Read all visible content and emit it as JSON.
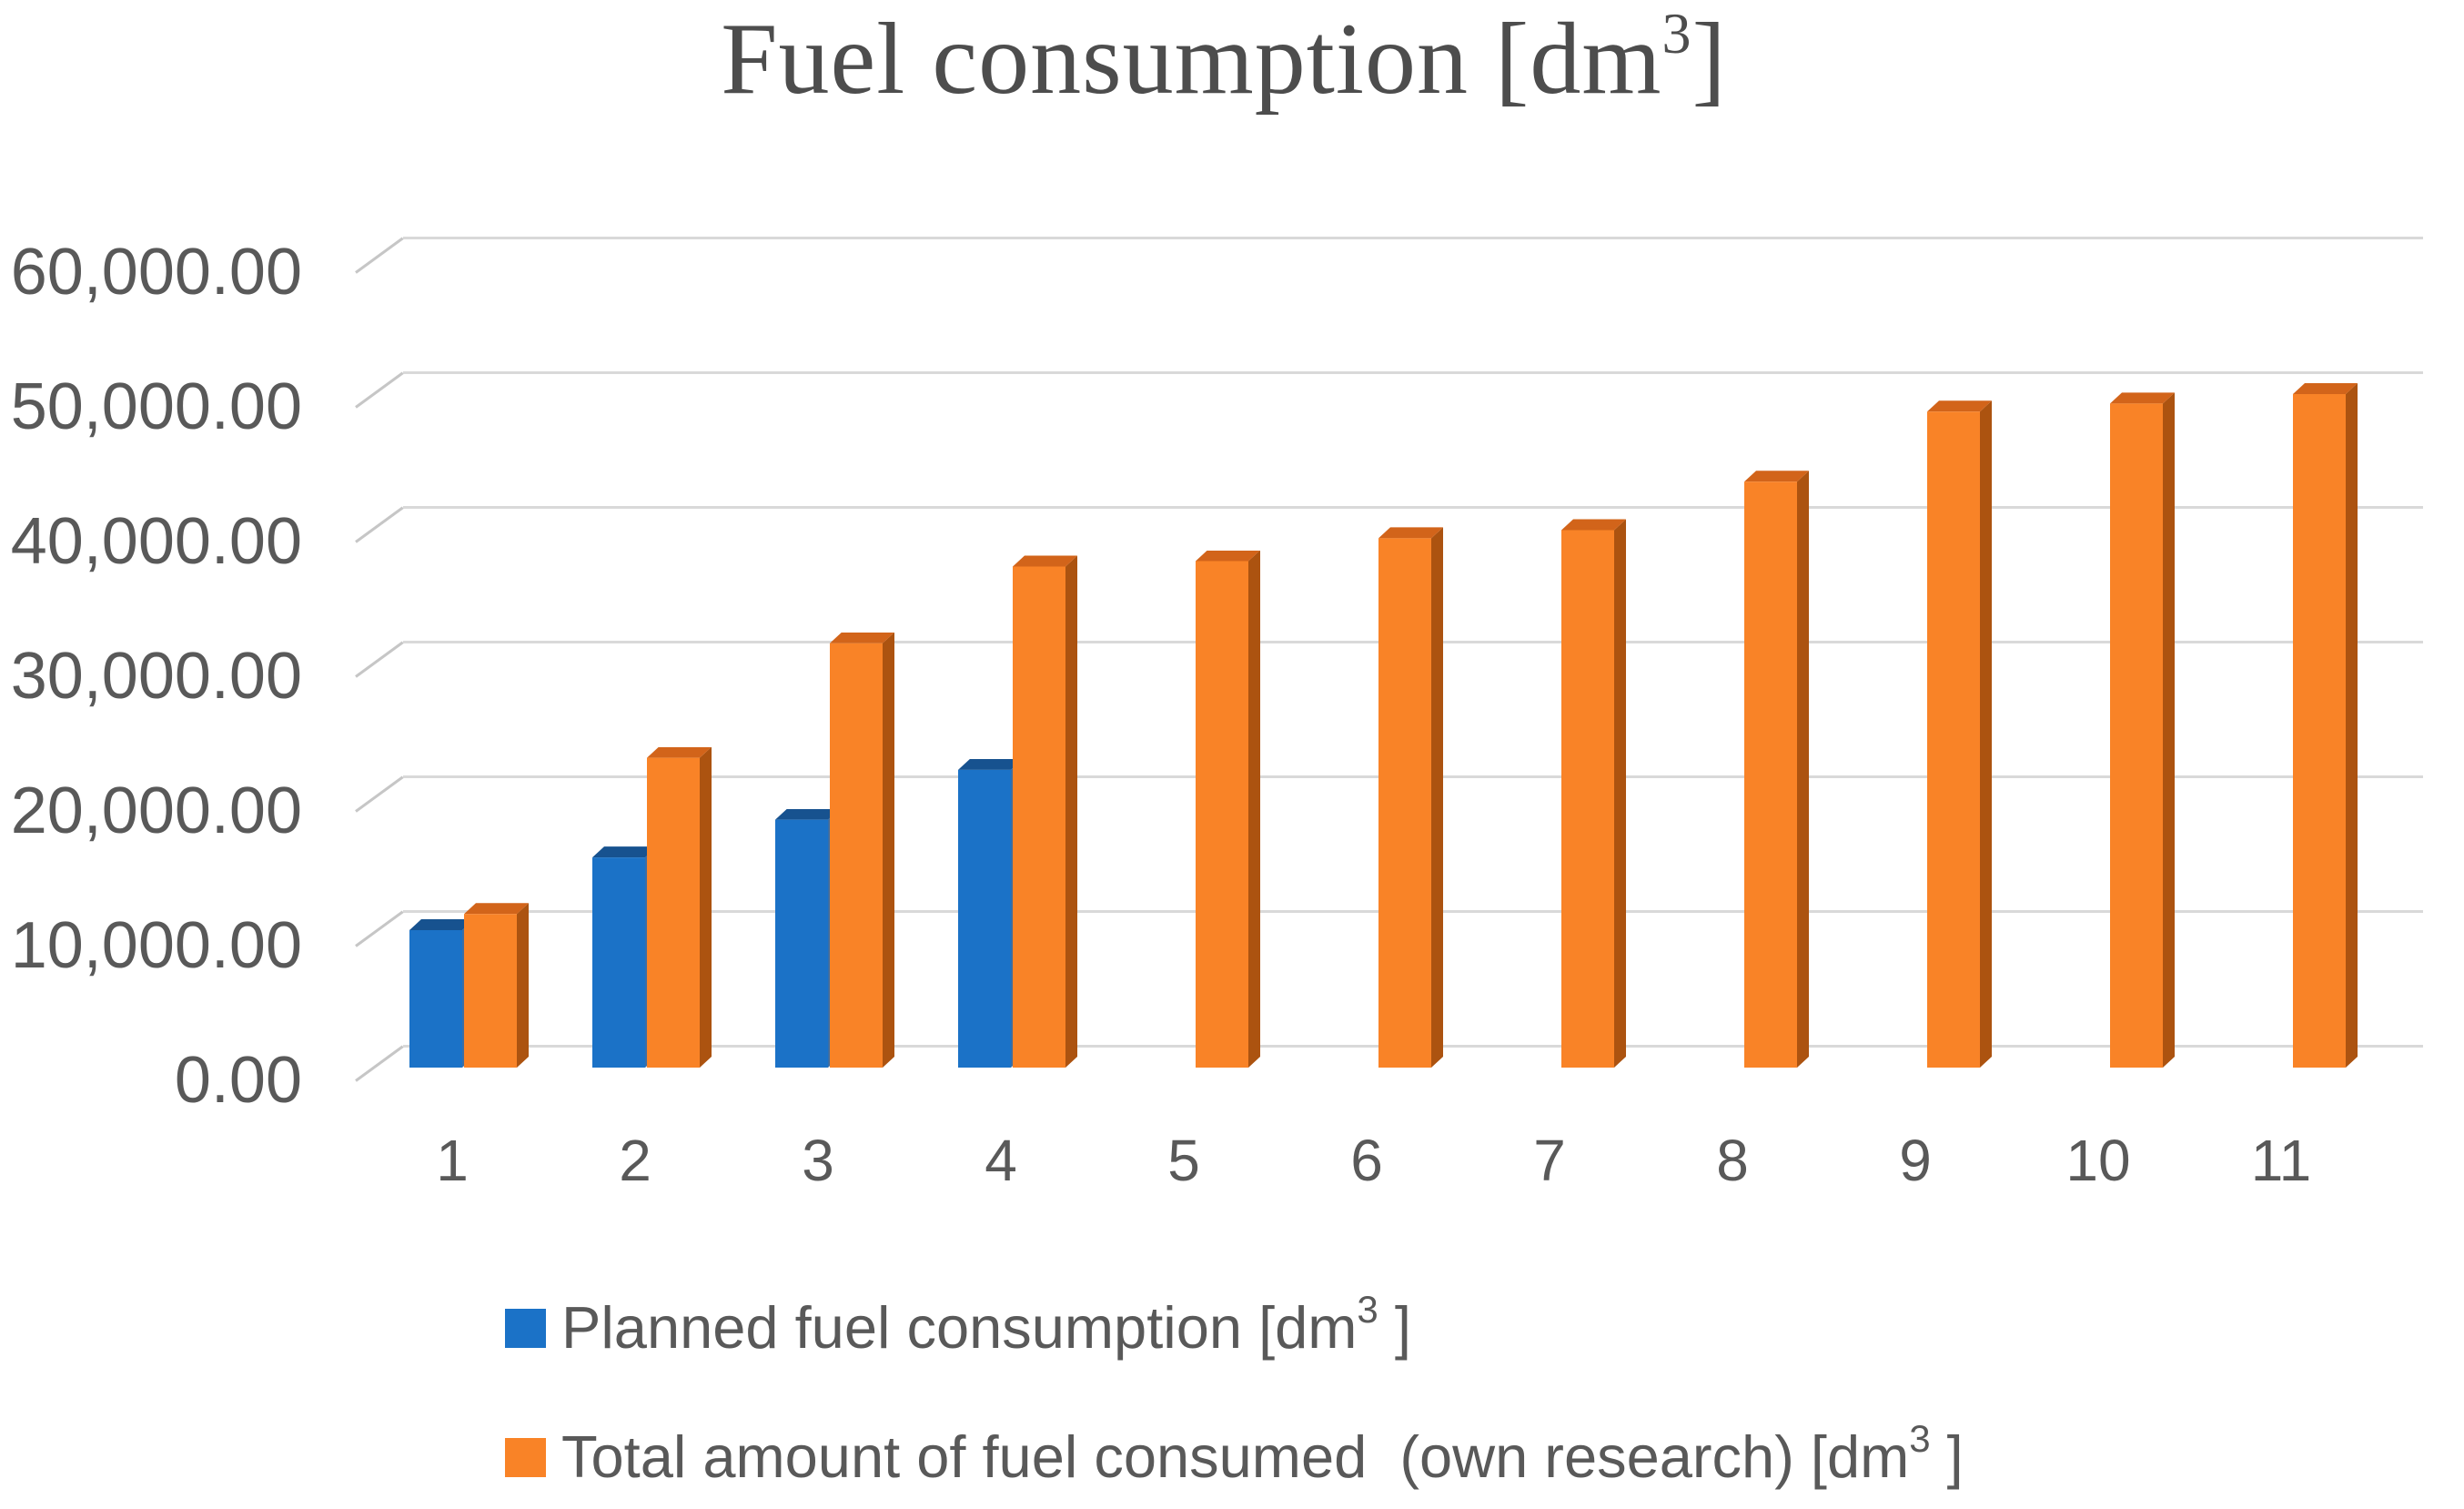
{
  "title": {
    "text_before_sup": "Fuel consumption [dm",
    "sup": "3",
    "text_after_sup": "]"
  },
  "chart_data": {
    "type": "bar",
    "projection": "3d-oblique",
    "title": "Fuel consumption [dm3]",
    "categories": [
      "1",
      "2",
      "3",
      "4",
      "5",
      "6",
      "7",
      "8",
      "9",
      "10",
      "11"
    ],
    "series": [
      {
        "name": "Planned fuel consumption [dm3 ]",
        "color": "#1b72c7",
        "color_top": "#17528f",
        "color_side": "#3b6ea5",
        "values": [
          10200,
          15600,
          18400,
          22100,
          null,
          null,
          null,
          null,
          null,
          null,
          null
        ]
      },
      {
        "name": "Total amount of fuel consumed  (own research) [dm3 ]",
        "color": "#f98327",
        "color_top": "#d2641a",
        "color_side": "#ac5310",
        "values": [
          11400,
          23000,
          31500,
          37200,
          37600,
          39300,
          39900,
          43500,
          48700,
          49300,
          50000
        ]
      }
    ],
    "xlabel": "",
    "ylabel": "",
    "ylim": [
      0,
      60000
    ],
    "ytick_step": 10000,
    "ytick_labels": [
      "0.00",
      "10,000.00",
      "20,000.00",
      "30,000.00",
      "40,000.00",
      "50,000.00",
      "60,000.00"
    ],
    "grid": true,
    "gridline_color": "#d9d9d9",
    "legend_position": "bottom-left"
  },
  "legend": {
    "items": [
      {
        "prefix": "Planned fuel consumption [dm",
        "sup": "3",
        "suffix": " ]",
        "color": "#1b72c7"
      },
      {
        "prefix": "Total amount of fuel consumed  (own research) [dm",
        "sup": "3",
        "suffix": " ]",
        "color": "#f98327"
      }
    ]
  },
  "colors": {
    "title_text": "#4d4d4d",
    "axis_text": "#595959",
    "gridline": "#d9d9d9",
    "blue_front": "#1b72c7",
    "orange_front": "#f98327"
  }
}
